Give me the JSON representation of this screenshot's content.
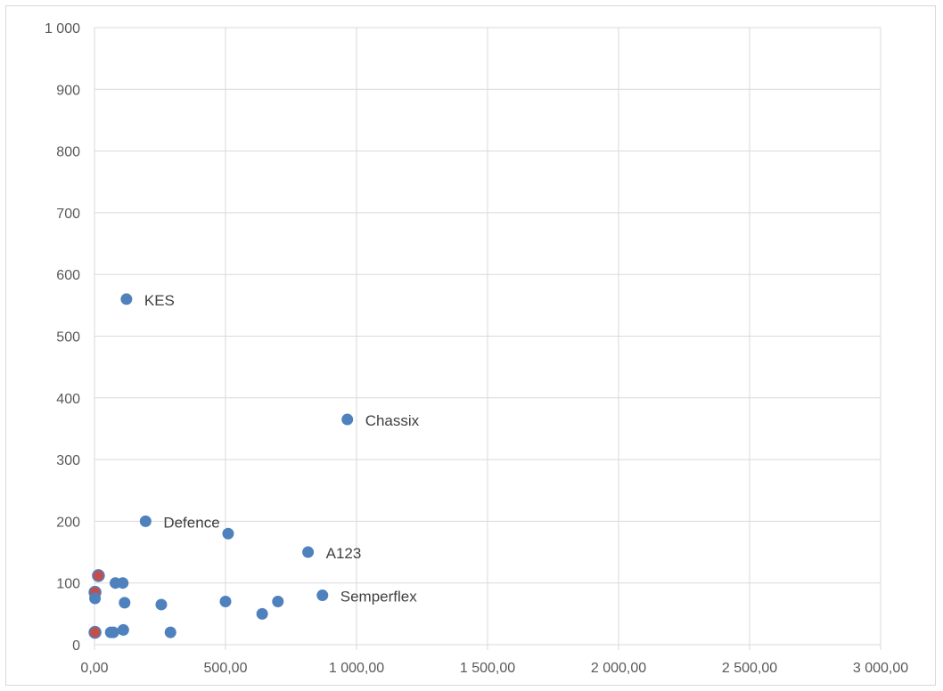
{
  "chart_data": {
    "type": "scatter",
    "title": "",
    "xlabel": "",
    "ylabel": "",
    "xlim": [
      0,
      3000
    ],
    "ylim": [
      0,
      1000
    ],
    "x_ticks": [
      0,
      500,
      1000,
      1500,
      2000,
      2500,
      3000
    ],
    "x_tick_labels": [
      "0,00",
      "500,00",
      "1 000,00",
      "1 500,00",
      "2 000,00",
      "2 500,00",
      "3 000,00"
    ],
    "y_ticks": [
      0,
      100,
      200,
      300,
      400,
      500,
      600,
      700,
      800,
      900,
      1000
    ],
    "y_tick_labels": [
      "0",
      "100",
      "200",
      "300",
      "400",
      "500",
      "600",
      "700",
      "800",
      "900",
      "1 000"
    ],
    "grid": true,
    "legend": "none",
    "colors": {
      "primary_marker": "#4f81bd",
      "accent_marker": "#c0504d"
    },
    "points": [
      {
        "x": 122,
        "y": 560,
        "label": "KES",
        "color": "primary"
      },
      {
        "x": 965,
        "y": 365,
        "label": "Chassix",
        "color": "primary"
      },
      {
        "x": 195,
        "y": 200,
        "label": "Defence",
        "color": "primary"
      },
      {
        "x": 510,
        "y": 180,
        "label": "",
        "color": "primary"
      },
      {
        "x": 815,
        "y": 150,
        "label": "A123",
        "color": "primary"
      },
      {
        "x": 870,
        "y": 80,
        "label": "Semperflex",
        "color": "primary"
      },
      {
        "x": 15,
        "y": 112,
        "label": "",
        "color": "accent"
      },
      {
        "x": 2,
        "y": 85,
        "label": "",
        "color": "accent"
      },
      {
        "x": 2,
        "y": 75,
        "label": "",
        "color": "primary"
      },
      {
        "x": 80,
        "y": 100,
        "label": "",
        "color": "primary"
      },
      {
        "x": 108,
        "y": 100,
        "label": "",
        "color": "primary"
      },
      {
        "x": 115,
        "y": 68,
        "label": "",
        "color": "primary"
      },
      {
        "x": 255,
        "y": 65,
        "label": "",
        "color": "primary"
      },
      {
        "x": 500,
        "y": 70,
        "label": "",
        "color": "primary"
      },
      {
        "x": 640,
        "y": 50,
        "label": "",
        "color": "primary"
      },
      {
        "x": 700,
        "y": 70,
        "label": "",
        "color": "primary"
      },
      {
        "x": 2,
        "y": 20,
        "label": "",
        "color": "accent"
      },
      {
        "x": 62,
        "y": 20,
        "label": "",
        "color": "primary"
      },
      {
        "x": 72,
        "y": 20,
        "label": "",
        "color": "primary"
      },
      {
        "x": 110,
        "y": 24,
        "label": "",
        "color": "primary"
      },
      {
        "x": 290,
        "y": 20,
        "label": "",
        "color": "primary"
      }
    ]
  }
}
